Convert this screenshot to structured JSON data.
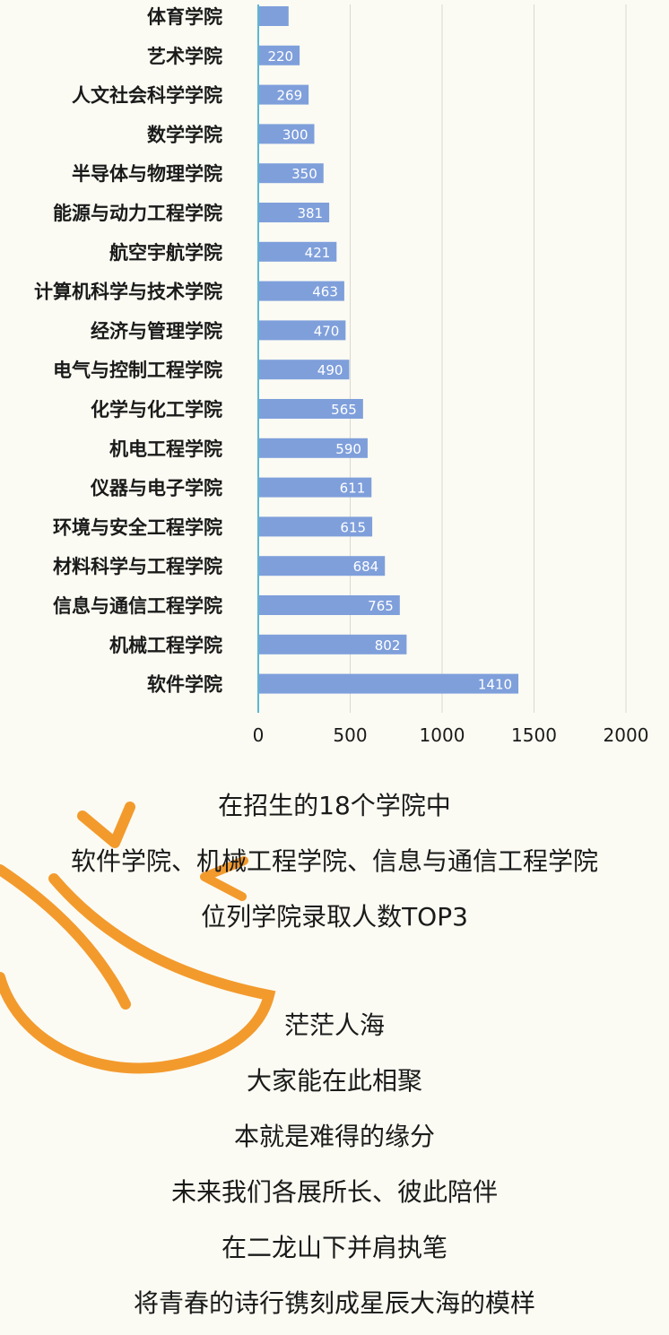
{
  "chart_data": {
    "type": "bar",
    "orientation": "horizontal",
    "categories": [
      "体育学院",
      "艺术学院",
      "人文社会科学学院",
      "数学学院",
      "半导体与物理学院",
      "能源与动力工程学院",
      "航空宇航学院",
      "计算机科学与技术学院",
      "经济与管理学院",
      "电气与控制工程学院",
      "化学与化工学院",
      "机电工程学院",
      "仪器与电子学院",
      "环境与安全工程学院",
      "材料科学与工程学院",
      "信息与通信工程学院",
      "机械工程学院",
      "软件学院"
    ],
    "values": [
      160,
      220,
      269,
      300,
      350,
      381,
      421,
      463,
      470,
      490,
      565,
      590,
      611,
      615,
      684,
      765,
      802,
      1410
    ],
    "data_labels": [
      "",
      "220",
      "269",
      "300",
      "350",
      "381",
      "421",
      "463",
      "470",
      "490",
      "565",
      "590",
      "611",
      "615",
      "684",
      "765",
      "802",
      "1410"
    ],
    "xlim": [
      0,
      2000
    ],
    "xticks": [
      "0",
      "500",
      "1000",
      "1500",
      "2000"
    ],
    "grid": true,
    "bar_color": "#7f9fdb",
    "axis_color": "#5fb7d0"
  },
  "text_block_1": {
    "lines": [
      "在招生的18个学院中",
      "软件学院、机械工程学院、信息与通信工程学院",
      "位列学院录取人数TOP3"
    ]
  },
  "text_block_2": {
    "lines": [
      "茫茫人海",
      "大家能在此相聚",
      "本就是难得的缘分",
      "未来我们各展所长、彼此陪伴",
      "在二龙山下并肩执笔",
      "将青春的诗行镌刻成星辰大海的模样"
    ]
  },
  "decoration": {
    "stroke_color": "#f39a2d",
    "icon": "orange-swirl-arrow-icon"
  }
}
